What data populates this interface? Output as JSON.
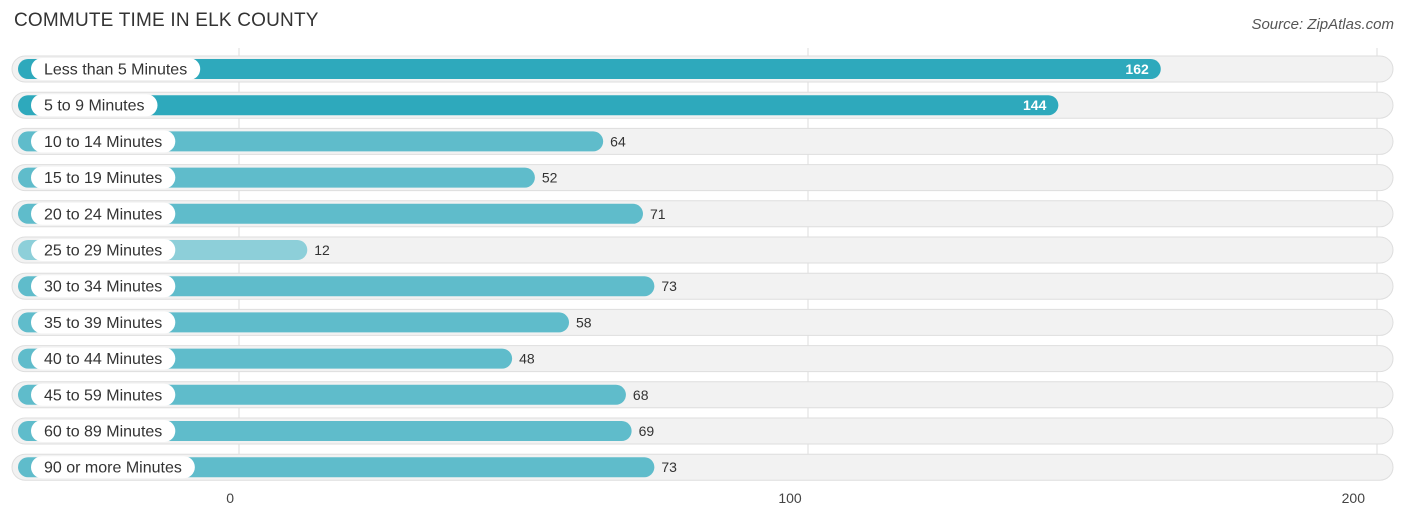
{
  "header": {
    "title": "COMMUTE TIME IN ELK COUNTY",
    "source": "Source: ZipAtlas.com"
  },
  "colors": {
    "bar_primary": "#2ea9bc",
    "bar_secondary": "#5fbccb",
    "bar_light": "#8dcfd9",
    "track": "#f2f2f2"
  },
  "chart_data": {
    "type": "bar",
    "orientation": "horizontal",
    "title": "COMMUTE TIME IN ELK COUNTY",
    "xlabel": "",
    "ylabel": "",
    "xlim": [
      0,
      200
    ],
    "ticks": [
      0,
      100,
      200
    ],
    "tick_labels": [
      "0",
      "100",
      "200"
    ],
    "grid": true,
    "categories": [
      "Less than 5 Minutes",
      "5 to 9 Minutes",
      "10 to 14 Minutes",
      "15 to 19 Minutes",
      "20 to 24 Minutes",
      "25 to 29 Minutes",
      "30 to 34 Minutes",
      "35 to 39 Minutes",
      "40 to 44 Minutes",
      "45 to 59 Minutes",
      "60 to 89 Minutes",
      "90 or more Minutes"
    ],
    "values": [
      162,
      144,
      64,
      52,
      71,
      12,
      73,
      58,
      48,
      68,
      69,
      73
    ],
    "value_labels": [
      "162",
      "144",
      "64",
      "52",
      "71",
      "12",
      "73",
      "58",
      "48",
      "68",
      "69",
      "73"
    ]
  }
}
